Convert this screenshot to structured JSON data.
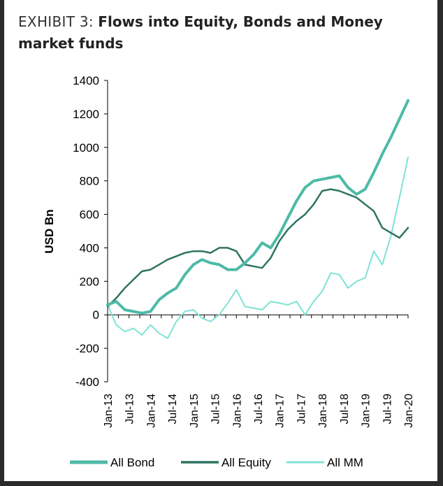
{
  "title_lead": "EXHIBIT 3:",
  "title_main": "Flows into Equity, Bonds and Money market funds",
  "chart_data": {
    "type": "line",
    "title": "Flows into Equity, Bonds and Money market funds",
    "ylabel": "USD Bn",
    "xlabel": "",
    "ylim": [
      -400,
      1400
    ],
    "yticks": [
      -400,
      -200,
      0,
      200,
      400,
      600,
      800,
      1000,
      1200,
      1400
    ],
    "xlim": [
      2013.0,
      2020.0
    ],
    "xtick_labels": [
      "Jan-13",
      "Jul-13",
      "Jan-14",
      "Jul-14",
      "Jan-15",
      "Jul-15",
      "Jan-16",
      "Jul-16",
      "Jan-17",
      "Jul-17",
      "Jan-18",
      "Jul-18",
      "Jan-19",
      "Jul-19",
      "Jan-20"
    ],
    "xtick_values": [
      2013.0,
      2013.5,
      2014.0,
      2014.5,
      2015.0,
      2015.5,
      2016.0,
      2016.5,
      2017.0,
      2017.5,
      2018.0,
      2018.5,
      2019.0,
      2019.5,
      2020.0
    ],
    "legend_position": "bottom",
    "series": [
      {
        "name": "All Bond",
        "color": "#4dbaa6",
        "width": 4,
        "x": [
          2013.0,
          2013.2,
          2013.4,
          2013.6,
          2013.8,
          2014.0,
          2014.2,
          2014.4,
          2014.6,
          2014.8,
          2015.0,
          2015.2,
          2015.4,
          2015.6,
          2015.8,
          2016.0,
          2016.2,
          2016.4,
          2016.6,
          2016.8,
          2017.0,
          2017.2,
          2017.4,
          2017.6,
          2017.8,
          2018.0,
          2018.2,
          2018.4,
          2018.6,
          2018.8,
          2019.0,
          2019.2,
          2019.4,
          2019.6,
          2019.8,
          2020.0
        ],
        "y": [
          60,
          80,
          30,
          20,
          10,
          20,
          90,
          130,
          160,
          240,
          300,
          330,
          310,
          300,
          270,
          270,
          310,
          360,
          430,
          400,
          480,
          580,
          680,
          760,
          800,
          810,
          820,
          830,
          760,
          720,
          750,
          850,
          960,
          1060,
          1170,
          1280
        ]
      },
      {
        "name": "All Equity",
        "color": "#2e7462",
        "width": 2.5,
        "x": [
          2013.0,
          2013.2,
          2013.4,
          2013.6,
          2013.8,
          2014.0,
          2014.2,
          2014.4,
          2014.6,
          2014.8,
          2015.0,
          2015.2,
          2015.4,
          2015.6,
          2015.8,
          2016.0,
          2016.2,
          2016.4,
          2016.6,
          2016.8,
          2017.0,
          2017.2,
          2017.4,
          2017.6,
          2017.8,
          2018.0,
          2018.2,
          2018.4,
          2018.6,
          2018.8,
          2019.0,
          2019.2,
          2019.4,
          2019.6,
          2019.8,
          2020.0
        ],
        "y": [
          50,
          100,
          160,
          210,
          260,
          270,
          300,
          330,
          350,
          370,
          380,
          380,
          370,
          400,
          400,
          380,
          300,
          290,
          280,
          340,
          440,
          510,
          560,
          600,
          660,
          740,
          750,
          740,
          720,
          700,
          660,
          620,
          520,
          490,
          460,
          520
        ]
      },
      {
        "name": "All MM",
        "color": "#7fe3d5",
        "width": 2,
        "x": [
          2013.0,
          2013.2,
          2013.4,
          2013.6,
          2013.8,
          2014.0,
          2014.2,
          2014.4,
          2014.6,
          2014.8,
          2015.0,
          2015.2,
          2015.4,
          2015.6,
          2015.8,
          2016.0,
          2016.2,
          2016.4,
          2016.6,
          2016.8,
          2017.0,
          2017.2,
          2017.4,
          2017.6,
          2017.8,
          2018.0,
          2018.2,
          2018.4,
          2018.6,
          2018.8,
          2019.0,
          2019.2,
          2019.4,
          2019.6,
          2019.8,
          2020.0
        ],
        "y": [
          60,
          -60,
          -100,
          -80,
          -120,
          -60,
          -110,
          -140,
          -40,
          20,
          30,
          -20,
          -40,
          0,
          70,
          150,
          50,
          40,
          30,
          80,
          70,
          60,
          80,
          0,
          80,
          140,
          250,
          240,
          160,
          200,
          220,
          380,
          300,
          470,
          700,
          940
        ]
      }
    ]
  }
}
